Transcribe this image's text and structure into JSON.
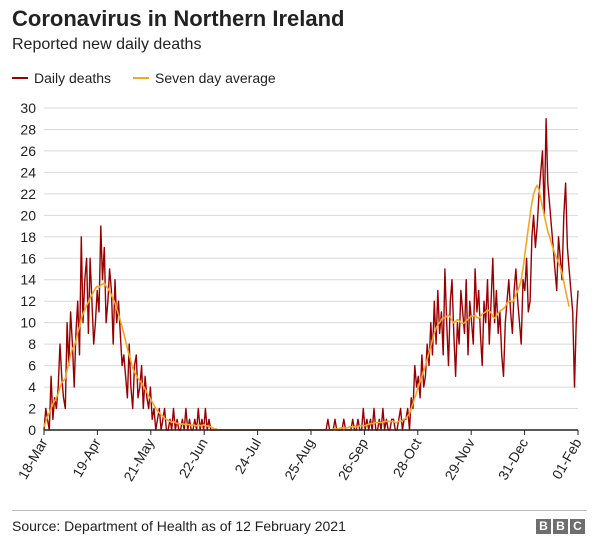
{
  "header": {
    "title": "Coronavirus in Northern Ireland",
    "subtitle": "Reported new daily deaths"
  },
  "legend": {
    "daily": "Daily deaths",
    "average": "Seven day average"
  },
  "footer": {
    "source": "Source: Department of Health as of 12 February 2021",
    "logo_letters": [
      "B",
      "B",
      "C"
    ]
  },
  "colors": {
    "daily": "#990000",
    "average": "#f5a623",
    "grid": "#d9d9d9",
    "axis": "#222222"
  },
  "chart_data": {
    "type": "line",
    "title": "Coronavirus in Northern Ireland",
    "subtitle": "Reported new daily deaths",
    "ylim": [
      0,
      30
    ],
    "yticks": [
      0,
      2,
      4,
      6,
      8,
      10,
      12,
      14,
      16,
      18,
      20,
      22,
      24,
      26,
      28,
      30
    ],
    "x_start": "2020-03-18",
    "x_end": "2021-02-01",
    "xtick_labels": [
      "18-Mar",
      "19-Apr",
      "21-May",
      "22-Jun",
      "24-Jul",
      "25-Aug",
      "26-Sep",
      "28-Oct",
      "29-Nov",
      "31-Dec",
      "01-Feb"
    ],
    "grid": "horizontal",
    "legend_position": "top-left",
    "series": [
      {
        "name": "Daily deaths",
        "values": [
          0,
          2,
          1,
          0,
          5,
          1,
          3,
          2,
          4,
          8,
          5,
          3,
          2,
          10,
          6,
          11,
          8,
          4,
          9,
          12,
          7,
          18,
          10,
          14,
          16,
          9,
          16,
          12,
          8,
          10,
          13,
          11,
          19,
          14,
          17,
          10,
          12,
          15,
          13,
          8,
          14,
          10,
          12,
          9,
          6,
          7,
          5,
          3,
          8,
          4,
          2,
          6,
          7,
          3,
          4,
          6,
          2,
          5,
          3,
          2,
          4,
          1,
          2,
          0,
          1,
          2,
          0,
          1,
          2,
          0,
          0,
          1,
          0,
          2,
          0,
          1,
          0,
          0,
          1,
          0,
          2,
          0,
          1,
          0,
          0,
          1,
          0,
          2,
          0,
          1,
          0,
          2,
          0,
          1,
          0,
          0,
          0,
          0,
          0,
          0,
          0,
          0,
          0,
          0,
          0,
          0,
          0,
          0,
          0,
          0,
          0,
          0,
          0,
          0,
          0,
          0,
          0,
          0,
          0,
          0,
          0,
          0,
          0,
          0,
          0,
          0,
          0,
          0,
          0,
          0,
          0,
          0,
          0,
          0,
          0,
          0,
          0,
          0,
          0,
          0,
          0,
          0,
          0,
          0,
          0,
          0,
          0,
          0,
          0,
          0,
          0,
          0,
          0,
          0,
          0,
          0,
          0,
          0,
          0,
          0,
          1,
          0,
          0,
          0,
          1,
          0,
          0,
          0,
          0,
          1,
          0,
          0,
          0,
          0,
          1,
          0,
          0,
          1,
          0,
          0,
          2,
          0,
          1,
          0,
          1,
          0,
          2,
          0,
          0,
          1,
          0,
          2,
          0,
          1,
          0,
          0,
          1,
          1,
          0,
          0,
          1,
          2,
          0,
          1,
          1,
          2,
          0,
          3,
          2,
          6,
          4,
          5,
          3,
          7,
          4,
          5,
          8,
          6,
          10,
          7,
          12,
          8,
          13,
          9,
          11,
          7,
          15,
          10,
          6,
          12,
          14,
          9,
          5,
          10,
          8,
          13,
          11,
          9,
          14,
          7,
          12,
          10,
          8,
          15,
          11,
          13,
          9,
          6,
          12,
          10,
          14,
          8,
          12,
          16,
          10,
          13,
          9,
          11,
          7,
          5,
          10,
          12,
          14,
          11,
          9,
          13,
          15,
          12,
          10,
          8,
          14,
          13,
          16,
          11,
          12,
          18,
          20,
          17,
          19,
          22,
          24,
          26,
          20,
          29,
          23,
          21,
          19,
          17,
          15,
          13,
          18,
          16,
          14,
          20,
          23,
          17,
          15,
          13,
          11,
          4,
          10,
          13
        ]
      },
      {
        "name": "Seven day average",
        "values": [
          0.3,
          0.8,
          1.2,
          1.6,
          2.0,
          2.4,
          2.7,
          3.0,
          3.4,
          4.0,
          4.4,
          4.6,
          4.8,
          5.6,
          6.2,
          7.0,
          7.6,
          7.8,
          8.3,
          9.1,
          9.6,
          10.4,
          10.8,
          11.2,
          11.6,
          11.9,
          12.3,
          12.6,
          12.9,
          13.2,
          13.4,
          13.3,
          13.5,
          13.6,
          13.7,
          13.4,
          13.2,
          12.9,
          12.6,
          12.2,
          11.8,
          11.3,
          10.8,
          10.2,
          9.6,
          9.0,
          8.3,
          7.6,
          7.0,
          6.4,
          5.8,
          5.4,
          5.1,
          4.8,
          4.6,
          4.4,
          4.1,
          3.8,
          3.5,
          3.2,
          2.9,
          2.6,
          2.3,
          2.0,
          1.8,
          1.6,
          1.4,
          1.3,
          1.1,
          1.0,
          0.9,
          0.8,
          0.7,
          0.8,
          0.7,
          0.6,
          0.6,
          0.5,
          0.6,
          0.5,
          0.6,
          0.5,
          0.5,
          0.4,
          0.5,
          0.4,
          0.4,
          0.5,
          0.4,
          0.4,
          0.5,
          0.4,
          0.4,
          0.3,
          0.3,
          0.2,
          0.1,
          0.1,
          0,
          0,
          0,
          0,
          0,
          0,
          0,
          0,
          0,
          0,
          0,
          0,
          0,
          0,
          0,
          0,
          0,
          0,
          0,
          0,
          0,
          0,
          0,
          0,
          0,
          0,
          0,
          0,
          0,
          0,
          0,
          0,
          0,
          0,
          0,
          0,
          0,
          0,
          0,
          0,
          0,
          0,
          0,
          0,
          0,
          0,
          0,
          0,
          0,
          0,
          0,
          0,
          0,
          0,
          0,
          0,
          0,
          0,
          0,
          0,
          0,
          0,
          0,
          0,
          0,
          0.1,
          0.1,
          0.1,
          0.1,
          0.2,
          0.2,
          0.2,
          0.2,
          0.2,
          0.3,
          0.3,
          0.3,
          0.3,
          0.3,
          0.3,
          0.4,
          0.4,
          0.4,
          0.4,
          0.5,
          0.5,
          0.6,
          0.6,
          0.6,
          0.7,
          0.7,
          0.7,
          0.7,
          0.7,
          0.8,
          0.8,
          0.8,
          0.8,
          0.8,
          0.8,
          0.7,
          0.7,
          0.8,
          0.8,
          0.9,
          1.0,
          1.1,
          1.3,
          1.5,
          2.0,
          2.5,
          3.0,
          3.5,
          4.0,
          4.5,
          5.0,
          5.5,
          6.0,
          6.6,
          7.2,
          7.8,
          8.4,
          9.0,
          9.5,
          9.8,
          10.0,
          10.3,
          10.5,
          10.4,
          10.6,
          10.7,
          10.5,
          10.2,
          10.0,
          10.1,
          10.3,
          10.2,
          10.0,
          9.9,
          10.0,
          10.2,
          10.3,
          10.5,
          10.6,
          10.6,
          10.7,
          10.5,
          10.4,
          10.6,
          10.8,
          10.9,
          11.0,
          11.2,
          11.1,
          10.9,
          10.6,
          10.4,
          10.6,
          10.9,
          11.1,
          11.2,
          11.3,
          11.5,
          11.8,
          12.0,
          12.0,
          11.9,
          12.2,
          12.6,
          13.0,
          13.4,
          14.0,
          15.0,
          16.3,
          17.6,
          18.8,
          20.0,
          21.2,
          22.0,
          22.5,
          22.8,
          22.4,
          21.6,
          20.8,
          20.0,
          19.2,
          18.5,
          18.0,
          17.4,
          16.9,
          16.4,
          16.0,
          15.6,
          15.2,
          14.6,
          13.8,
          13.0,
          12.2,
          11.5
        ]
      }
    ]
  }
}
